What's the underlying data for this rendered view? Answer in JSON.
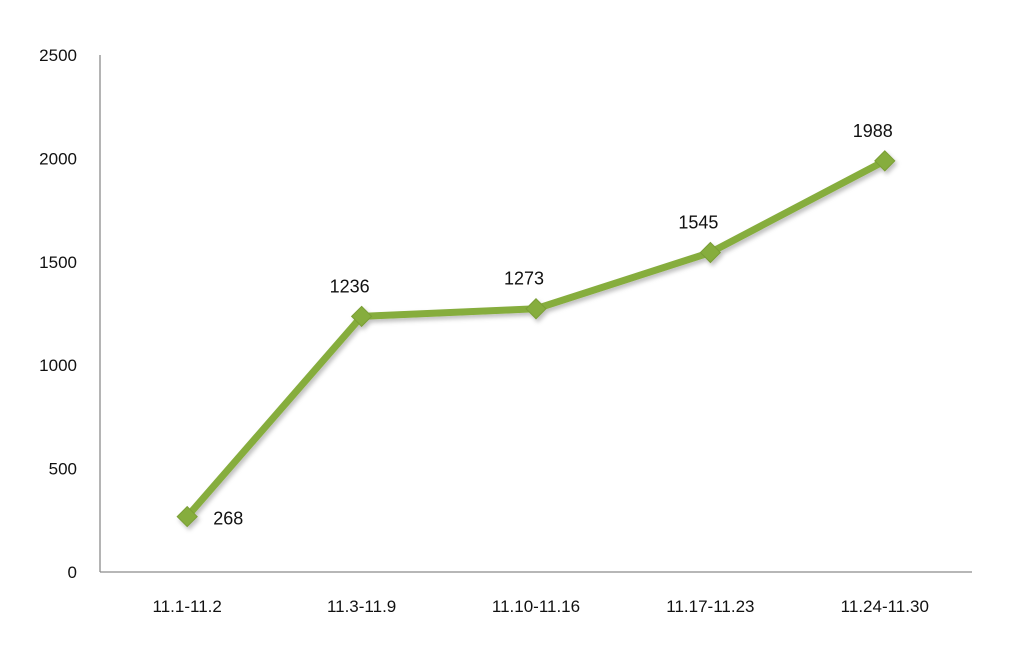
{
  "chart_data": {
    "type": "line",
    "categories": [
      "11.1-11.2",
      "11.3-11.9",
      "11.10-11.16",
      "11.17-11.23",
      "11.24-11.30"
    ],
    "values": [
      268,
      1236,
      1273,
      1545,
      1988
    ],
    "data_labels": [
      "268",
      "1236",
      "1273",
      "1545",
      "1988"
    ],
    "title": "",
    "xlabel": "",
    "ylabel": "",
    "ylim": [
      0,
      2500
    ],
    "yticks": [
      0,
      500,
      1000,
      1500,
      2000,
      2500
    ],
    "ytick_labels": [
      "0",
      "500",
      "1000",
      "1500",
      "2000",
      "2500"
    ],
    "grid": false,
    "legend": "none",
    "line_color": "#86ad3e",
    "marker": "diamond"
  }
}
